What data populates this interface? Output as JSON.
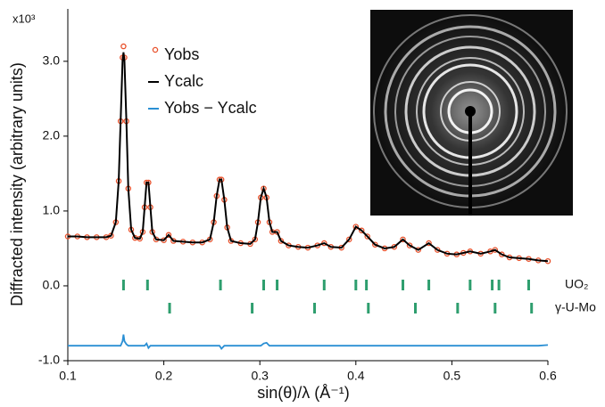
{
  "chart_data": {
    "type": "line",
    "y_multiplier": "x10³",
    "xlabel": "sin(θ)/λ (Å⁻¹)",
    "ylabel": "Diffracted intensity (arbitrary units)",
    "xlim": [
      0.1,
      0.6
    ],
    "xticks": [
      0.1,
      0.2,
      0.3,
      0.4,
      0.5,
      0.6
    ],
    "ylim": [
      -1.0,
      3.7
    ],
    "yticks": [
      {
        "value": -1,
        "label": "-1.0"
      },
      {
        "value": 0,
        "label": "0.0"
      },
      {
        "value": 1,
        "label": "1.0"
      },
      {
        "value": 2,
        "label": "2.0"
      },
      {
        "value": 3,
        "label": "3.0"
      }
    ],
    "x": [
      0.1,
      0.11,
      0.12,
      0.13,
      0.14,
      0.145,
      0.15,
      0.153,
      0.155,
      0.157,
      0.158,
      0.159,
      0.161,
      0.163,
      0.166,
      0.17,
      0.175,
      0.178,
      0.18,
      0.182,
      0.184,
      0.186,
      0.188,
      0.192,
      0.2,
      0.205,
      0.21,
      0.22,
      0.23,
      0.24,
      0.248,
      0.252,
      0.255,
      0.258,
      0.26,
      0.263,
      0.266,
      0.27,
      0.28,
      0.29,
      0.295,
      0.298,
      0.301,
      0.304,
      0.307,
      0.31,
      0.313,
      0.318,
      0.322,
      0.33,
      0.34,
      0.35,
      0.36,
      0.367,
      0.374,
      0.385,
      0.393,
      0.4,
      0.406,
      0.412,
      0.42,
      0.43,
      0.44,
      0.449,
      0.456,
      0.465,
      0.476,
      0.485,
      0.495,
      0.505,
      0.512,
      0.519,
      0.53,
      0.54,
      0.545,
      0.552,
      0.56,
      0.57,
      0.58,
      0.59,
      0.6
    ],
    "series": [
      {
        "name": "Yobs",
        "style": "markers",
        "color": "#e8502a",
        "values": [
          0.66,
          0.66,
          0.65,
          0.65,
          0.65,
          0.67,
          0.85,
          1.4,
          2.2,
          3.05,
          3.2,
          3.05,
          2.2,
          1.3,
          0.75,
          0.64,
          0.63,
          0.72,
          1.05,
          1.38,
          1.38,
          1.05,
          0.72,
          0.62,
          0.61,
          0.68,
          0.6,
          0.59,
          0.58,
          0.58,
          0.62,
          0.85,
          1.2,
          1.42,
          1.42,
          1.15,
          0.78,
          0.6,
          0.57,
          0.56,
          0.62,
          0.85,
          1.18,
          1.3,
          1.18,
          0.85,
          0.72,
          0.72,
          0.6,
          0.54,
          0.52,
          0.51,
          0.54,
          0.57,
          0.52,
          0.51,
          0.62,
          0.79,
          0.74,
          0.66,
          0.55,
          0.5,
          0.52,
          0.62,
          0.54,
          0.48,
          0.57,
          0.48,
          0.43,
          0.42,
          0.44,
          0.46,
          0.43,
          0.46,
          0.48,
          0.42,
          0.38,
          0.37,
          0.36,
          0.34,
          0.33
        ]
      },
      {
        "name": "Ycalc",
        "style": "line",
        "color": "#000000",
        "values": [
          0.66,
          0.66,
          0.65,
          0.65,
          0.65,
          0.67,
          0.85,
          1.4,
          2.2,
          3.0,
          3.12,
          3.0,
          2.2,
          1.3,
          0.75,
          0.64,
          0.63,
          0.72,
          1.05,
          1.38,
          1.38,
          1.05,
          0.72,
          0.62,
          0.61,
          0.68,
          0.6,
          0.59,
          0.58,
          0.58,
          0.62,
          0.85,
          1.2,
          1.42,
          1.42,
          1.15,
          0.78,
          0.6,
          0.57,
          0.56,
          0.62,
          0.85,
          1.18,
          1.3,
          1.18,
          0.85,
          0.72,
          0.72,
          0.6,
          0.54,
          0.52,
          0.51,
          0.54,
          0.57,
          0.52,
          0.51,
          0.62,
          0.79,
          0.74,
          0.66,
          0.55,
          0.5,
          0.52,
          0.62,
          0.54,
          0.48,
          0.57,
          0.48,
          0.43,
          0.42,
          0.44,
          0.46,
          0.43,
          0.46,
          0.48,
          0.42,
          0.38,
          0.37,
          0.36,
          0.34,
          0.33
        ]
      },
      {
        "name": "Yobs − Ycalc",
        "style": "line",
        "color": "#2a8fd4",
        "values": [
          -0.8,
          -0.8,
          -0.8,
          -0.8,
          -0.8,
          -0.8,
          -0.8,
          -0.8,
          -0.8,
          -0.74,
          -0.65,
          -0.74,
          -0.78,
          -0.8,
          -0.8,
          -0.8,
          -0.8,
          -0.8,
          -0.8,
          -0.77,
          -0.83,
          -0.8,
          -0.8,
          -0.8,
          -0.8,
          -0.8,
          -0.8,
          -0.8,
          -0.8,
          -0.8,
          -0.8,
          -0.8,
          -0.8,
          -0.8,
          -0.84,
          -0.8,
          -0.8,
          -0.8,
          -0.8,
          -0.8,
          -0.8,
          -0.8,
          -0.8,
          -0.77,
          -0.76,
          -0.8,
          -0.8,
          -0.8,
          -0.8,
          -0.8,
          -0.8,
          -0.8,
          -0.8,
          -0.8,
          -0.8,
          -0.8,
          -0.8,
          -0.8,
          -0.8,
          -0.8,
          -0.8,
          -0.8,
          -0.8,
          -0.8,
          -0.8,
          -0.8,
          -0.8,
          -0.8,
          -0.8,
          -0.8,
          -0.8,
          -0.8,
          -0.8,
          -0.8,
          -0.8,
          -0.8,
          -0.8,
          -0.8,
          -0.8,
          -0.8,
          -0.79
        ]
      }
    ],
    "reflections": [
      {
        "name": "UO₂",
        "color": "#2e9e6e",
        "positions": [
          0.158,
          0.183,
          0.259,
          0.304,
          0.318,
          0.367,
          0.4,
          0.411,
          0.449,
          0.476,
          0.519,
          0.542,
          0.549,
          0.58
        ]
      },
      {
        "name": "γ-U-Mo",
        "color": "#2e9e6e",
        "positions": [
          0.206,
          0.292,
          0.357,
          0.413,
          0.462,
          0.506,
          0.545,
          0.583
        ]
      }
    ]
  }
}
